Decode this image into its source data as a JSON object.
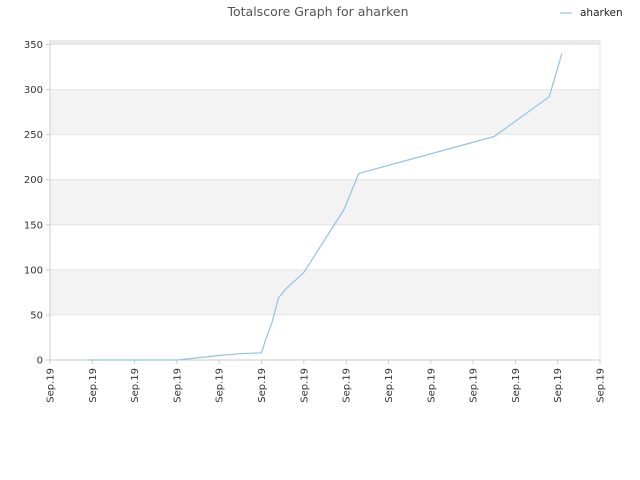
{
  "chart_data": {
    "type": "line",
    "title": "Totalscore Graph for aharken",
    "legend": {
      "position": "top-right"
    },
    "xlabel": "",
    "ylabel": "",
    "ylim": [
      0,
      355
    ],
    "yticks": [
      0,
      50,
      100,
      150,
      200,
      250,
      300,
      350
    ],
    "xticks": [
      "Sep.19",
      "Sep.19",
      "Sep.19",
      "Sep.19",
      "Sep.19",
      "Sep.19",
      "Sep.19",
      "Sep.19",
      "Sep.19",
      "Sep.19",
      "Sep.19",
      "Sep.19",
      "Sep.19",
      "Sep.19"
    ],
    "xlim": [
      0,
      13
    ],
    "grid": "alternating horizontal bands",
    "colors": {
      "line": "#90c3ea",
      "band": "#f3f3f3",
      "axis": "#cccccc"
    },
    "series": [
      {
        "name": "aharken",
        "x": [
          0.9,
          2.0,
          3.0,
          3.2,
          4.0,
          4.5,
          5.0,
          5.1,
          5.25,
          5.4,
          5.6,
          6.0,
          6.95,
          7.3,
          10.5,
          11.8,
          12.1
        ],
        "y": [
          0,
          0,
          0,
          1,
          5,
          7,
          8,
          23,
          42,
          69,
          80,
          97,
          167,
          207,
          248,
          292,
          340
        ]
      }
    ]
  }
}
